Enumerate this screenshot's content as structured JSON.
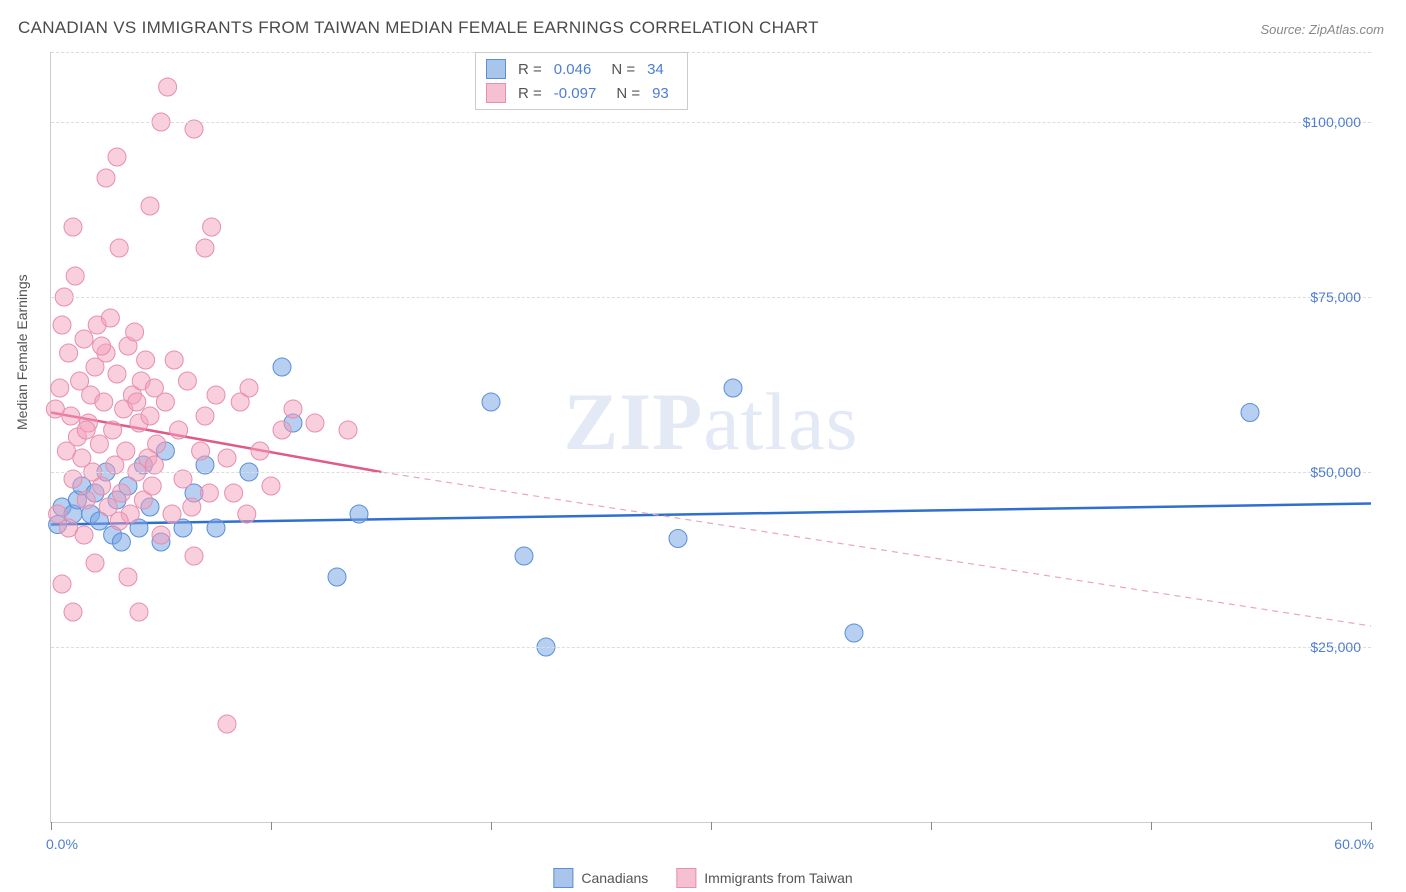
{
  "title": "CANADIAN VS IMMIGRANTS FROM TAIWAN MEDIAN FEMALE EARNINGS CORRELATION CHART",
  "source": "Source: ZipAtlas.com",
  "ylabel": "Median Female Earnings",
  "watermark_bold": "ZIP",
  "watermark_rest": "atlas",
  "chart": {
    "type": "scatter",
    "xlim": [
      0,
      60
    ],
    "ylim": [
      0,
      110000
    ],
    "x_ticks": [
      0,
      10,
      20,
      30,
      40,
      50,
      60
    ],
    "y_gridlines": [
      25000,
      50000,
      75000,
      100000
    ],
    "y_tick_labels": [
      "$25,000",
      "$50,000",
      "$75,000",
      "$100,000"
    ],
    "x_start_label": "0.0%",
    "x_end_label": "60.0%",
    "plot_bg": "#ffffff",
    "grid_color": "#dddddd",
    "axis_color": "#cccccc",
    "series": [
      {
        "name": "Canadians",
        "color_fill": "rgba(123,168,228,0.55)",
        "color_stroke": "#5b8fd8",
        "swatch_fill": "#a9c5ec",
        "swatch_stroke": "#5b8fd8",
        "marker_radius": 9,
        "R": "0.046",
        "N": "34",
        "trend": {
          "y_at_x0": 42500,
          "y_at_x60": 45500,
          "color": "#2f6fd0",
          "width": 2.5,
          "dash": ""
        },
        "points": [
          [
            0.3,
            42500
          ],
          [
            0.5,
            45000
          ],
          [
            1.0,
            44000
          ],
          [
            1.2,
            46000
          ],
          [
            1.4,
            48000
          ],
          [
            1.8,
            44000
          ],
          [
            2.0,
            47000
          ],
          [
            2.2,
            43000
          ],
          [
            2.5,
            50000
          ],
          [
            2.8,
            41000
          ],
          [
            3.0,
            46000
          ],
          [
            3.2,
            40000
          ],
          [
            3.5,
            48000
          ],
          [
            4.0,
            42000
          ],
          [
            4.2,
            51000
          ],
          [
            4.5,
            45000
          ],
          [
            5.0,
            40000
          ],
          [
            5.2,
            53000
          ],
          [
            6.0,
            42000
          ],
          [
            6.5,
            47000
          ],
          [
            7.0,
            51000
          ],
          [
            7.5,
            42000
          ],
          [
            9.0,
            50000
          ],
          [
            10.5,
            65000
          ],
          [
            11.0,
            57000
          ],
          [
            13.0,
            35000
          ],
          [
            14.0,
            44000
          ],
          [
            20.0,
            60000
          ],
          [
            21.5,
            38000
          ],
          [
            22.5,
            25000
          ],
          [
            28.5,
            40500
          ],
          [
            31.0,
            62000
          ],
          [
            36.5,
            27000
          ],
          [
            54.5,
            58500
          ]
        ]
      },
      {
        "name": "Immigrants from Taiwan",
        "color_fill": "rgba(245,160,188,0.5)",
        "color_stroke": "#e68fae",
        "swatch_fill": "#f5c0d2",
        "swatch_stroke": "#e68fae",
        "marker_radius": 9,
        "R": "-0.097",
        "N": "93",
        "trend": {
          "y_at_x0": 58500,
          "y_at_x15": 50000,
          "color": "#e05a8a",
          "width": 2.5,
          "dash": "",
          "extend_dash_to_x": 60,
          "extend_y": 28000,
          "dash_color": "#e9a6bd"
        },
        "points": [
          [
            0.2,
            59000
          ],
          [
            0.3,
            44000
          ],
          [
            0.4,
            62000
          ],
          [
            0.5,
            71000
          ],
          [
            0.6,
            75000
          ],
          [
            0.7,
            53000
          ],
          [
            0.8,
            67000
          ],
          [
            0.9,
            58000
          ],
          [
            1.0,
            49000
          ],
          [
            1.1,
            78000
          ],
          [
            1.2,
            55000
          ],
          [
            1.3,
            63000
          ],
          [
            1.4,
            52000
          ],
          [
            1.5,
            69000
          ],
          [
            1.6,
            46000
          ],
          [
            1.7,
            57000
          ],
          [
            1.8,
            61000
          ],
          [
            1.9,
            50000
          ],
          [
            2.0,
            65000
          ],
          [
            2.1,
            71000
          ],
          [
            2.2,
            54000
          ],
          [
            2.3,
            48000
          ],
          [
            2.4,
            60000
          ],
          [
            2.5,
            67000
          ],
          [
            2.6,
            45000
          ],
          [
            2.7,
            72000
          ],
          [
            2.8,
            56000
          ],
          [
            2.9,
            51000
          ],
          [
            3.0,
            64000
          ],
          [
            3.1,
            82000
          ],
          [
            3.2,
            47000
          ],
          [
            3.3,
            59000
          ],
          [
            3.4,
            53000
          ],
          [
            3.5,
            68000
          ],
          [
            3.6,
            44000
          ],
          [
            3.7,
            61000
          ],
          [
            3.8,
            70000
          ],
          [
            3.9,
            50000
          ],
          [
            4.0,
            57000
          ],
          [
            4.1,
            63000
          ],
          [
            4.2,
            46000
          ],
          [
            4.3,
            66000
          ],
          [
            4.4,
            52000
          ],
          [
            4.5,
            58000
          ],
          [
            4.6,
            48000
          ],
          [
            4.7,
            62000
          ],
          [
            4.8,
            54000
          ],
          [
            5.0,
            41000
          ],
          [
            5.2,
            60000
          ],
          [
            5.5,
            44000
          ],
          [
            5.8,
            56000
          ],
          [
            6.0,
            49000
          ],
          [
            6.2,
            63000
          ],
          [
            6.5,
            38000
          ],
          [
            6.8,
            53000
          ],
          [
            7.0,
            58000
          ],
          [
            7.2,
            47000
          ],
          [
            7.5,
            61000
          ],
          [
            1.0,
            30000
          ],
          [
            3.0,
            95000
          ],
          [
            4.5,
            88000
          ],
          [
            5.0,
            100000
          ],
          [
            5.3,
            105000
          ],
          [
            6.5,
            99000
          ],
          [
            7.0,
            82000
          ],
          [
            7.3,
            85000
          ],
          [
            0.5,
            34000
          ],
          [
            1.5,
            41000
          ],
          [
            2.0,
            37000
          ],
          [
            3.5,
            35000
          ],
          [
            4.0,
            30000
          ],
          [
            9.5,
            53000
          ],
          [
            9.0,
            62000
          ],
          [
            10.0,
            48000
          ],
          [
            10.5,
            56000
          ],
          [
            11.0,
            59000
          ],
          [
            8.0,
            52000
          ],
          [
            8.3,
            47000
          ],
          [
            8.6,
            60000
          ],
          [
            8.9,
            44000
          ],
          [
            12.0,
            57000
          ],
          [
            13.5,
            56000
          ],
          [
            8.0,
            14000
          ],
          [
            1.0,
            85000
          ],
          [
            2.5,
            92000
          ],
          [
            0.8,
            42000
          ],
          [
            1.6,
            56000
          ],
          [
            2.3,
            68000
          ],
          [
            3.1,
            43000
          ],
          [
            3.9,
            60000
          ],
          [
            4.7,
            51000
          ],
          [
            5.6,
            66000
          ],
          [
            6.4,
            45000
          ]
        ]
      }
    ]
  },
  "legend": {
    "items": [
      "Canadians",
      "Immigrants from Taiwan"
    ]
  }
}
